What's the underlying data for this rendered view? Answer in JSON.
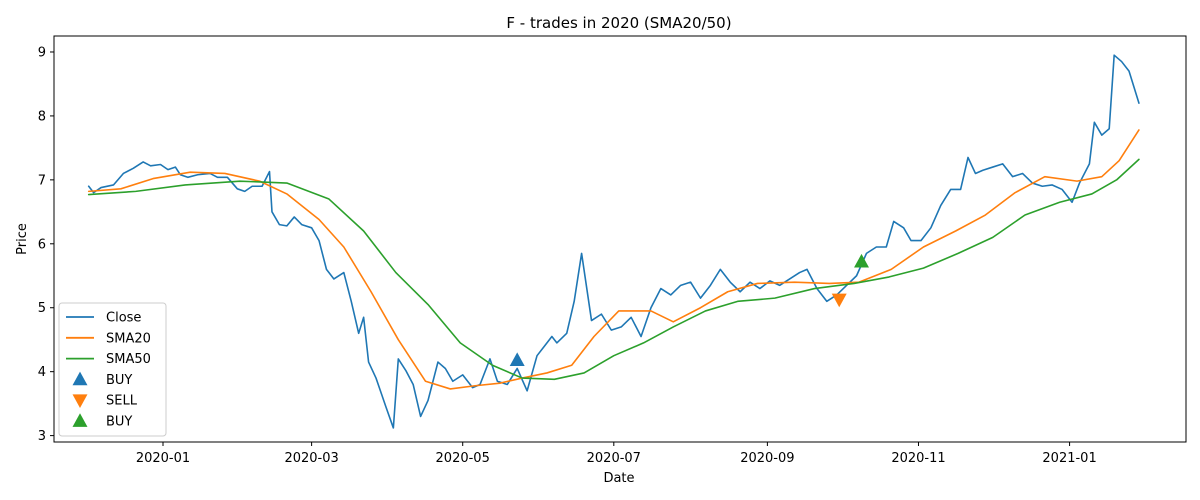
{
  "chart_data": {
    "type": "line",
    "title": "F - trades in 2020 (SMA20/50)",
    "xlabel": "Date",
    "ylabel": "Price",
    "x_range": [
      "2019-11-18",
      "2021-02-17"
    ],
    "ylim": [
      2.9,
      9.25
    ],
    "x_ticks": [
      "2020-01",
      "2020-03",
      "2020-05",
      "2020-07",
      "2020-09",
      "2020-11",
      "2021-01"
    ],
    "y_ticks": [
      3,
      4,
      5,
      6,
      7,
      8,
      9
    ],
    "grid": false,
    "legend_position": "lower-left",
    "series": [
      {
        "name": "Close",
        "color": "#1f77b4",
        "points": [
          [
            "2019-12-02",
            6.9
          ],
          [
            "2019-12-04",
            6.8
          ],
          [
            "2019-12-07",
            6.88
          ],
          [
            "2019-12-12",
            6.92
          ],
          [
            "2019-12-16",
            7.1
          ],
          [
            "2019-12-20",
            7.18
          ],
          [
            "2019-12-24",
            7.28
          ],
          [
            "2019-12-27",
            7.22
          ],
          [
            "2019-12-31",
            7.24
          ],
          [
            "2020-01-03",
            7.16
          ],
          [
            "2020-01-06",
            7.2
          ],
          [
            "2020-01-08",
            7.08
          ],
          [
            "2020-01-11",
            7.04
          ],
          [
            "2020-01-15",
            7.08
          ],
          [
            "2020-01-20",
            7.1
          ],
          [
            "2020-01-23",
            7.04
          ],
          [
            "2020-01-27",
            7.04
          ],
          [
            "2020-01-31",
            6.86
          ],
          [
            "2020-02-03",
            6.82
          ],
          [
            "2020-02-06",
            6.9
          ],
          [
            "2020-02-10",
            6.9
          ],
          [
            "2020-02-13",
            7.13
          ],
          [
            "2020-02-14",
            6.5
          ],
          [
            "2020-02-17",
            6.3
          ],
          [
            "2020-02-20",
            6.28
          ],
          [
            "2020-02-23",
            6.42
          ],
          [
            "2020-02-26",
            6.3
          ],
          [
            "2020-03-01",
            6.25
          ],
          [
            "2020-03-04",
            6.05
          ],
          [
            "2020-03-07",
            5.6
          ],
          [
            "2020-03-10",
            5.45
          ],
          [
            "2020-03-14",
            5.55
          ],
          [
            "2020-03-17",
            5.1
          ],
          [
            "2020-03-20",
            4.6
          ],
          [
            "2020-03-22",
            4.85
          ],
          [
            "2020-03-24",
            4.15
          ],
          [
            "2020-03-27",
            3.9
          ],
          [
            "2020-03-31",
            3.45
          ],
          [
            "2020-04-03",
            3.12
          ],
          [
            "2020-04-05",
            4.2
          ],
          [
            "2020-04-08",
            4.02
          ],
          [
            "2020-04-11",
            3.8
          ],
          [
            "2020-04-14",
            3.3
          ],
          [
            "2020-04-17",
            3.55
          ],
          [
            "2020-04-21",
            4.15
          ],
          [
            "2020-04-24",
            4.05
          ],
          [
            "2020-04-27",
            3.85
          ],
          [
            "2020-05-01",
            3.95
          ],
          [
            "2020-05-05",
            3.75
          ],
          [
            "2020-05-08",
            3.8
          ],
          [
            "2020-05-12",
            4.2
          ],
          [
            "2020-05-15",
            3.85
          ],
          [
            "2020-05-19",
            3.8
          ],
          [
            "2020-05-23",
            4.05
          ],
          [
            "2020-05-27",
            3.7
          ],
          [
            "2020-05-31",
            4.25
          ],
          [
            "2020-06-03",
            4.4
          ],
          [
            "2020-06-06",
            4.55
          ],
          [
            "2020-06-08",
            4.45
          ],
          [
            "2020-06-12",
            4.6
          ],
          [
            "2020-06-15",
            5.1
          ],
          [
            "2020-06-18",
            5.85
          ],
          [
            "2020-06-22",
            4.8
          ],
          [
            "2020-06-26",
            4.9
          ],
          [
            "2020-06-30",
            4.65
          ],
          [
            "2020-07-04",
            4.7
          ],
          [
            "2020-07-08",
            4.85
          ],
          [
            "2020-07-12",
            4.55
          ],
          [
            "2020-07-16",
            5.0
          ],
          [
            "2020-07-20",
            5.3
          ],
          [
            "2020-07-24",
            5.2
          ],
          [
            "2020-07-28",
            5.35
          ],
          [
            "2020-08-01",
            5.4
          ],
          [
            "2020-08-05",
            5.15
          ],
          [
            "2020-08-09",
            5.35
          ],
          [
            "2020-08-13",
            5.6
          ],
          [
            "2020-08-17",
            5.4
          ],
          [
            "2020-08-21",
            5.25
          ],
          [
            "2020-08-25",
            5.4
          ],
          [
            "2020-08-29",
            5.3
          ],
          [
            "2020-09-02",
            5.42
          ],
          [
            "2020-09-06",
            5.35
          ],
          [
            "2020-09-10",
            5.45
          ],
          [
            "2020-09-14",
            5.55
          ],
          [
            "2020-09-17",
            5.6
          ],
          [
            "2020-09-21",
            5.3
          ],
          [
            "2020-09-25",
            5.1
          ],
          [
            "2020-09-29",
            5.2
          ],
          [
            "2020-10-03",
            5.35
          ],
          [
            "2020-10-07",
            5.5
          ],
          [
            "2020-10-11",
            5.85
          ],
          [
            "2020-10-15",
            5.95
          ],
          [
            "2020-10-19",
            5.95
          ],
          [
            "2020-10-22",
            6.35
          ],
          [
            "2020-10-26",
            6.25
          ],
          [
            "2020-10-29",
            6.05
          ],
          [
            "2020-11-02",
            6.05
          ],
          [
            "2020-11-06",
            6.25
          ],
          [
            "2020-11-10",
            6.6
          ],
          [
            "2020-11-14",
            6.85
          ],
          [
            "2020-11-18",
            6.85
          ],
          [
            "2020-11-21",
            7.35
          ],
          [
            "2020-11-24",
            7.1
          ],
          [
            "2020-11-27",
            7.15
          ],
          [
            "2020-12-01",
            7.2
          ],
          [
            "2020-12-05",
            7.25
          ],
          [
            "2020-12-09",
            7.05
          ],
          [
            "2020-12-13",
            7.1
          ],
          [
            "2020-12-17",
            6.95
          ],
          [
            "2020-12-21",
            6.9
          ],
          [
            "2020-12-25",
            6.92
          ],
          [
            "2020-12-29",
            6.85
          ],
          [
            "2021-01-02",
            6.65
          ],
          [
            "2021-01-05",
            6.95
          ],
          [
            "2021-01-09",
            7.25
          ],
          [
            "2021-01-11",
            7.9
          ],
          [
            "2021-01-14",
            7.7
          ],
          [
            "2021-01-17",
            7.8
          ],
          [
            "2021-01-19",
            8.95
          ],
          [
            "2021-01-22",
            8.85
          ],
          [
            "2021-01-25",
            8.7
          ],
          [
            "2021-01-29",
            8.2
          ]
        ]
      },
      {
        "name": "SMA20",
        "color": "#ff7f0e",
        "points": [
          [
            "2019-12-02",
            6.82
          ],
          [
            "2019-12-15",
            6.86
          ],
          [
            "2019-12-28",
            7.02
          ],
          [
            "2020-01-12",
            7.12
          ],
          [
            "2020-01-26",
            7.1
          ],
          [
            "2020-02-09",
            6.98
          ],
          [
            "2020-02-20",
            6.78
          ],
          [
            "2020-03-04",
            6.38
          ],
          [
            "2020-03-14",
            5.95
          ],
          [
            "2020-03-25",
            5.25
          ],
          [
            "2020-04-05",
            4.5
          ],
          [
            "2020-04-16",
            3.85
          ],
          [
            "2020-04-26",
            3.73
          ],
          [
            "2020-05-06",
            3.78
          ],
          [
            "2020-05-16",
            3.82
          ],
          [
            "2020-05-25",
            3.9
          ],
          [
            "2020-06-04",
            3.98
          ],
          [
            "2020-06-14",
            4.1
          ],
          [
            "2020-06-23",
            4.55
          ],
          [
            "2020-07-03",
            4.95
          ],
          [
            "2020-07-16",
            4.95
          ],
          [
            "2020-07-25",
            4.78
          ],
          [
            "2020-08-05",
            5.0
          ],
          [
            "2020-08-16",
            5.25
          ],
          [
            "2020-08-28",
            5.38
          ],
          [
            "2020-09-12",
            5.4
          ],
          [
            "2020-09-26",
            5.38
          ],
          [
            "2020-10-08",
            5.4
          ],
          [
            "2020-10-21",
            5.6
          ],
          [
            "2020-11-03",
            5.95
          ],
          [
            "2020-11-16",
            6.2
          ],
          [
            "2020-11-28",
            6.45
          ],
          [
            "2020-12-10",
            6.8
          ],
          [
            "2020-12-22",
            7.05
          ],
          [
            "2021-01-04",
            6.98
          ],
          [
            "2021-01-14",
            7.05
          ],
          [
            "2021-01-21",
            7.3
          ],
          [
            "2021-01-29",
            7.78
          ]
        ]
      },
      {
        "name": "SMA50",
        "color": "#2ca02c",
        "points": [
          [
            "2019-12-02",
            6.77
          ],
          [
            "2019-12-21",
            6.82
          ],
          [
            "2020-01-10",
            6.92
          ],
          [
            "2020-02-01",
            6.98
          ],
          [
            "2020-02-20",
            6.95
          ],
          [
            "2020-03-08",
            6.7
          ],
          [
            "2020-03-22",
            6.2
          ],
          [
            "2020-04-04",
            5.55
          ],
          [
            "2020-04-17",
            5.05
          ],
          [
            "2020-04-30",
            4.45
          ],
          [
            "2020-05-13",
            4.1
          ],
          [
            "2020-05-25",
            3.9
          ],
          [
            "2020-06-07",
            3.88
          ],
          [
            "2020-06-19",
            3.98
          ],
          [
            "2020-07-01",
            4.25
          ],
          [
            "2020-07-13",
            4.45
          ],
          [
            "2020-07-25",
            4.7
          ],
          [
            "2020-08-07",
            4.95
          ],
          [
            "2020-08-20",
            5.1
          ],
          [
            "2020-09-04",
            5.15
          ],
          [
            "2020-09-20",
            5.3
          ],
          [
            "2020-10-06",
            5.38
          ],
          [
            "2020-10-20",
            5.48
          ],
          [
            "2020-11-03",
            5.62
          ],
          [
            "2020-11-17",
            5.85
          ],
          [
            "2020-12-01",
            6.1
          ],
          [
            "2020-12-14",
            6.45
          ],
          [
            "2020-12-28",
            6.65
          ],
          [
            "2021-01-10",
            6.78
          ],
          [
            "2021-01-20",
            7.0
          ],
          [
            "2021-01-29",
            7.32
          ]
        ]
      }
    ],
    "markers": [
      {
        "name": "BUY",
        "date": "2020-05-23",
        "price": 4.18,
        "shape": "triangle-up",
        "color": "#1f77b4"
      },
      {
        "name": "SELL",
        "date": "2020-09-30",
        "price": 5.13,
        "shape": "triangle-down",
        "color": "#ff7f0e"
      },
      {
        "name": "BUY",
        "date": "2020-10-09",
        "price": 5.72,
        "shape": "triangle-up",
        "color": "#2ca02c"
      }
    ]
  }
}
